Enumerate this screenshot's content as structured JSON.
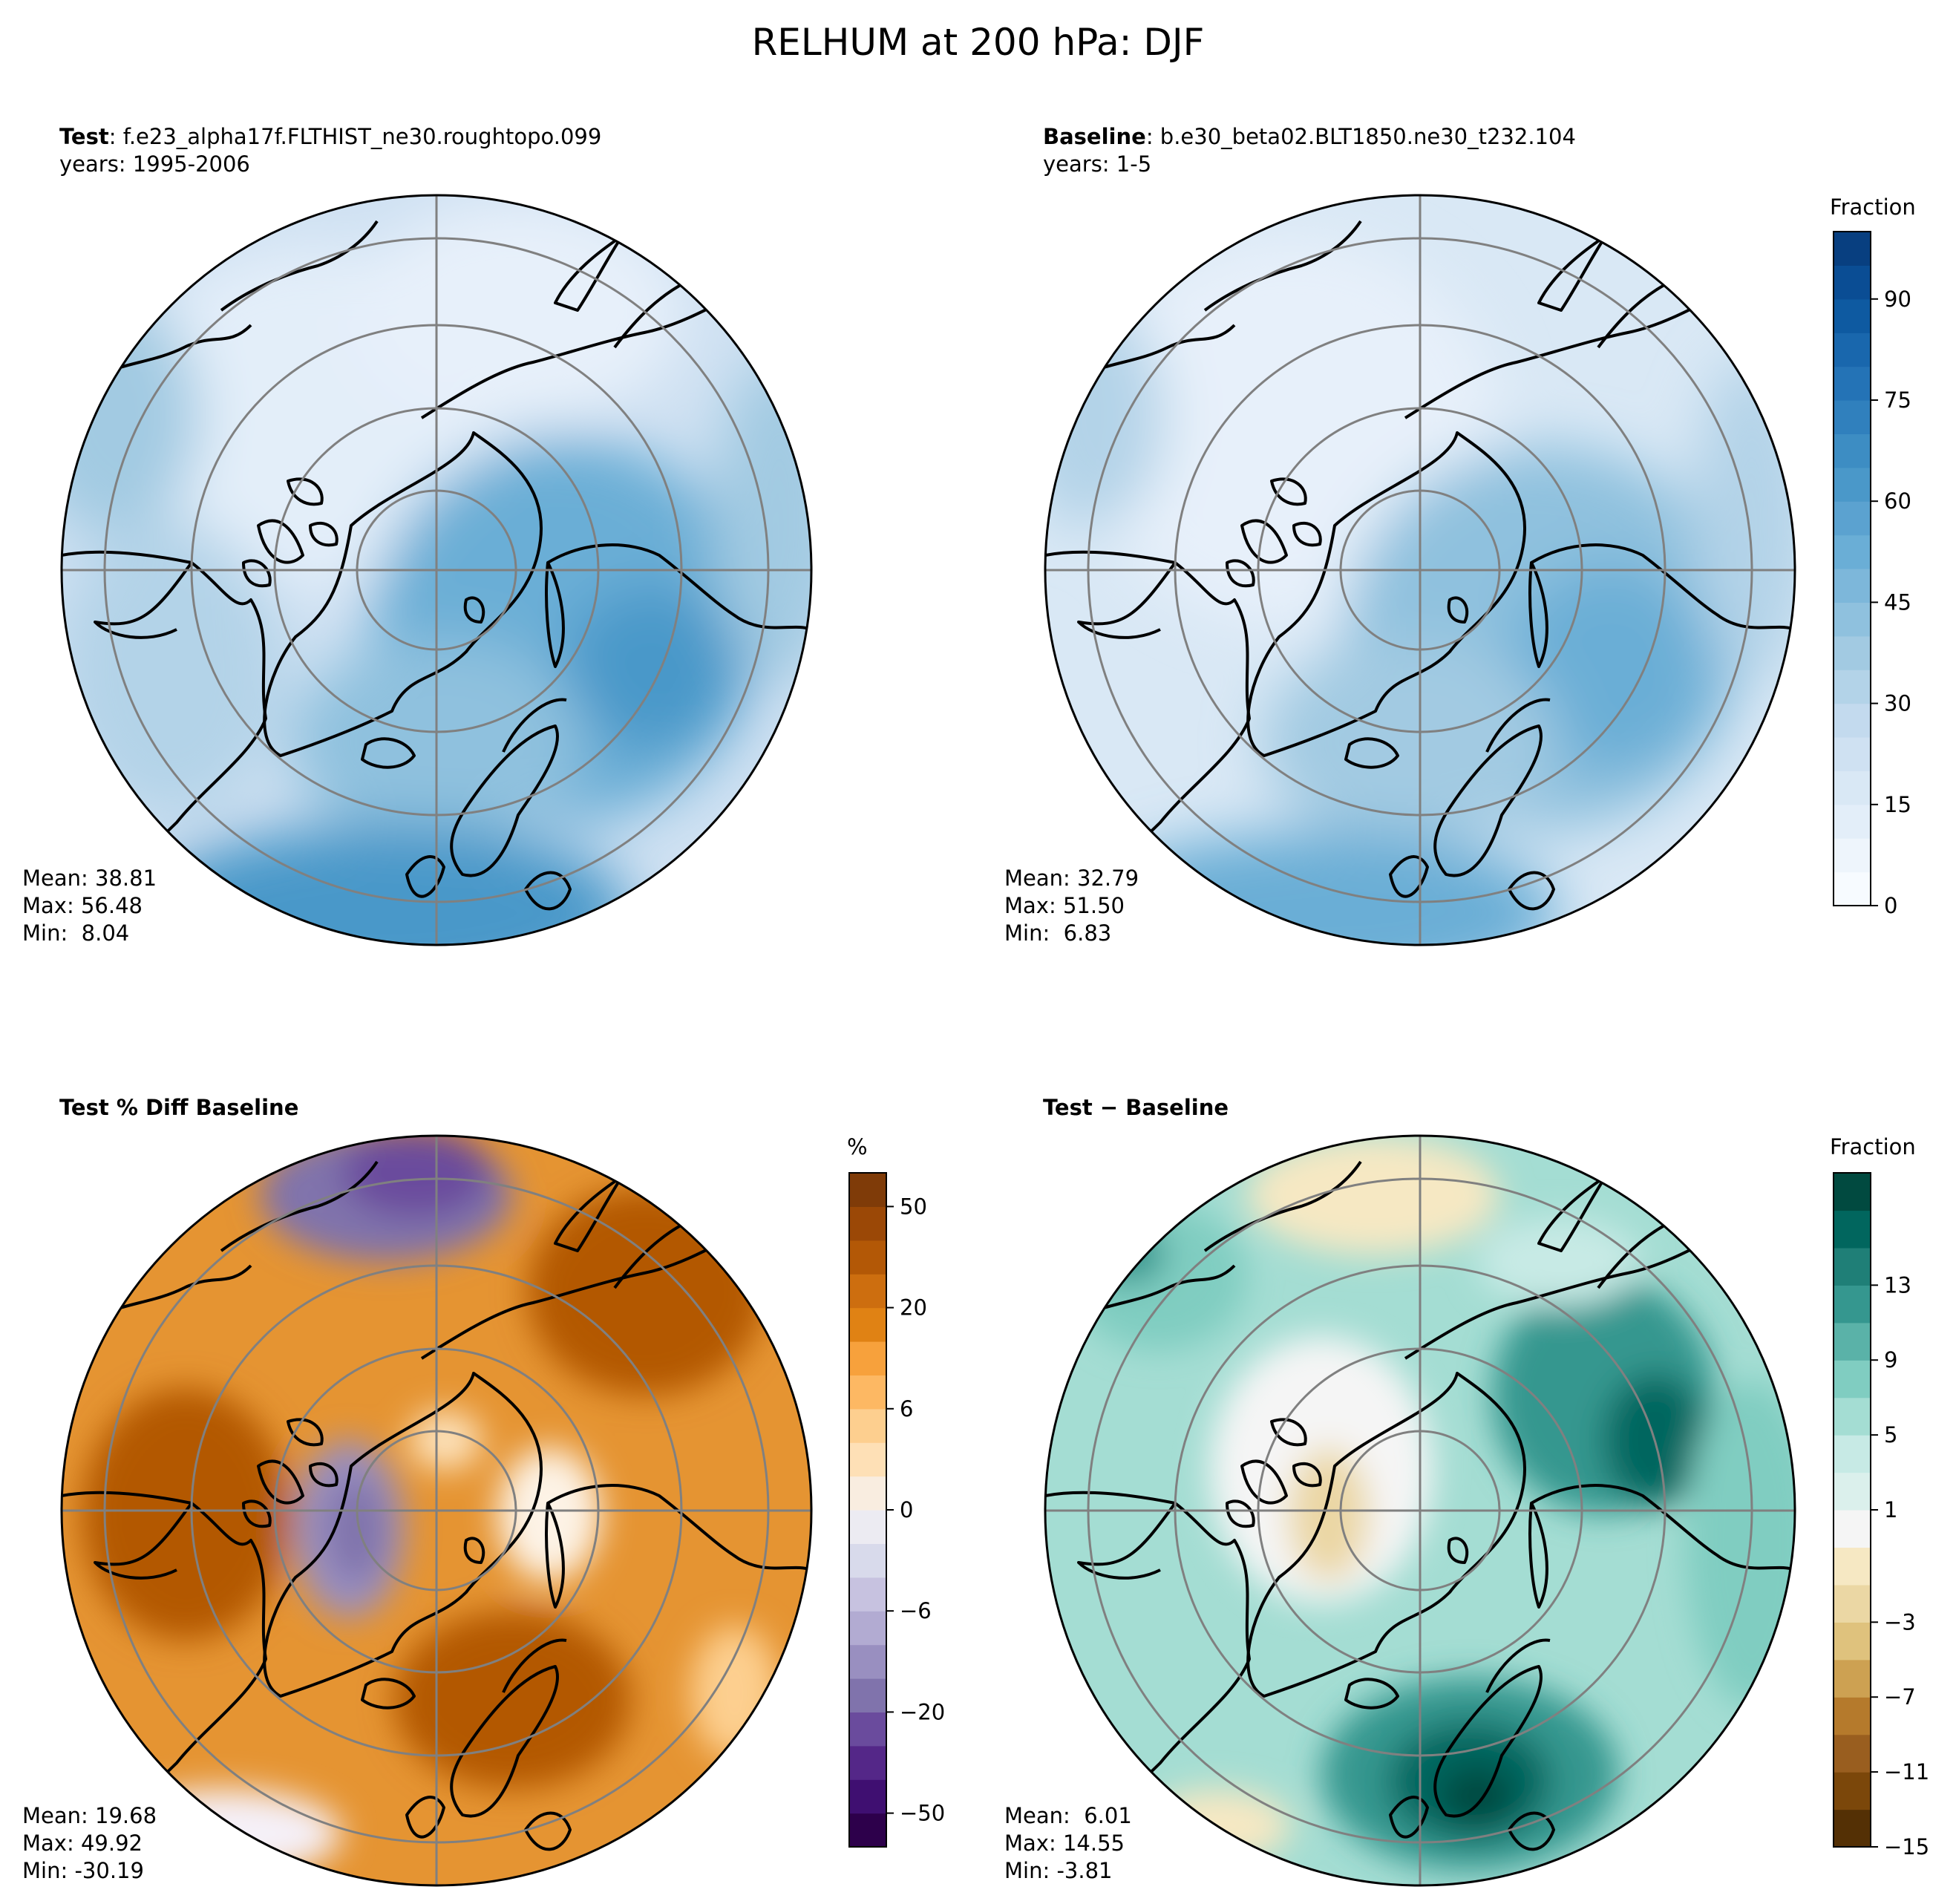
{
  "title": "RELHUM at 200 hPa: DJF",
  "panels": [
    {
      "id": "test",
      "title_bold": "Test",
      "title_rest": ": f.e23_alpha17f.FLTHIST_ne30.roughtopo.099",
      "subtitle": "years: 1995-2006",
      "stats": {
        "mean_label": "Mean:",
        "mean": "38.81",
        "max_label": "Max:",
        "max": "56.48",
        "min_label": "Min:",
        "min": "8.04"
      }
    },
    {
      "id": "baseline",
      "title_bold": "Baseline",
      "title_rest": ": b.e30_beta02.BLT1850.ne30_t232.104",
      "subtitle": "years: 1-5",
      "stats": {
        "mean_label": "Mean:",
        "mean": "32.79",
        "max_label": "Max:",
        "max": "51.50",
        "min_label": "Min:",
        "min": "6.83"
      }
    },
    {
      "id": "pctdiff",
      "title_bold": "Test % Diff Baseline",
      "title_rest": "",
      "subtitle": "",
      "stats": {
        "mean_label": "Mean:",
        "mean": "19.68",
        "max_label": "Max:",
        "max": "49.92",
        "min_label": "Min:",
        "min": "-30.19"
      }
    },
    {
      "id": "diff",
      "title_bold": "Test − Baseline",
      "title_rest": "",
      "subtitle": "",
      "stats": {
        "mean_label": "Mean:",
        "mean": "6.01",
        "max_label": "Max:",
        "max": "14.55",
        "min_label": "Min:",
        "min": "-3.81"
      }
    }
  ],
  "colorbars": [
    {
      "id": "cb-relhum",
      "title": "Fraction",
      "min": 0,
      "max": 100,
      "ticks": [
        "0",
        "15",
        "30",
        "45",
        "60",
        "75",
        "90"
      ],
      "colors": [
        "#f7fbff",
        "#eef5fc",
        "#e3eef9",
        "#d9e8f5",
        "#cfe1f2",
        "#c3daee",
        "#b3d3e8",
        "#a2cae2",
        "#8fc1de",
        "#7db7da",
        "#6aaed6",
        "#5ba2d0",
        "#4a98c9",
        "#3d8dc3",
        "#3080bd",
        "#2473b6",
        "#1967ad",
        "#0e5aa1",
        "#0a4d94",
        "#083f80"
      ]
    },
    {
      "id": "cb-pct",
      "title": "%",
      "ticks": [
        "−50",
        "−20",
        "−6",
        "0",
        "6",
        "20",
        "50"
      ],
      "colors": [
        "#2d004b",
        "#3f0f71",
        "#542788",
        "#6a4b9d",
        "#8073ac",
        "#998fc0",
        "#b2abd2",
        "#c7c2e0",
        "#d8daeb",
        "#ecebf2",
        "#f9ede0",
        "#fee0b6",
        "#fdcf8f",
        "#fdb863",
        "#f7a13c",
        "#e08214",
        "#cd6e0f",
        "#b35806",
        "#9b4806",
        "#7f3b08"
      ]
    },
    {
      "id": "cb-diff",
      "title": "Fraction",
      "ticks": [
        "−15",
        "−11",
        "−7",
        "−3",
        "1",
        "5",
        "9",
        "13"
      ],
      "colors": [
        "#543005",
        "#7b470a",
        "#995e1f",
        "#b57a2c",
        "#cda152",
        "#dfc27d",
        "#ebd7a4",
        "#f6e8c3",
        "#f5f5f5",
        "#dbf0ec",
        "#c7eae5",
        "#a4ddd3",
        "#80cdc1",
        "#5ab2a8",
        "#35978f",
        "#1f7f77",
        "#01665e",
        "#014a40"
      ]
    }
  ],
  "chart_data": [
    {
      "type": "heatmap",
      "title": "Test: f.e23_alpha17f.FLTHIST_ne30.roughtopo.099",
      "variable": "RELHUM",
      "level": "200 hPa",
      "season": "DJF",
      "units": "Fraction",
      "range": [
        0,
        100
      ],
      "mean": 38.81,
      "max": 56.48,
      "min": 8.04
    },
    {
      "type": "heatmap",
      "title": "Baseline: b.e30_beta02.BLT1850.ne30_t232.104",
      "variable": "RELHUM",
      "level": "200 hPa",
      "season": "DJF",
      "units": "Fraction",
      "range": [
        0,
        100
      ],
      "mean": 32.79,
      "max": 51.5,
      "min": 6.83
    },
    {
      "type": "heatmap",
      "title": "Test % Diff Baseline",
      "units": "%",
      "mean": 19.68,
      "max": 49.92,
      "min": -30.19
    },
    {
      "type": "heatmap",
      "title": "Test − Baseline",
      "units": "Fraction",
      "range": [
        -15,
        15
      ],
      "mean": 6.01,
      "max": 14.55,
      "min": -3.81
    }
  ]
}
